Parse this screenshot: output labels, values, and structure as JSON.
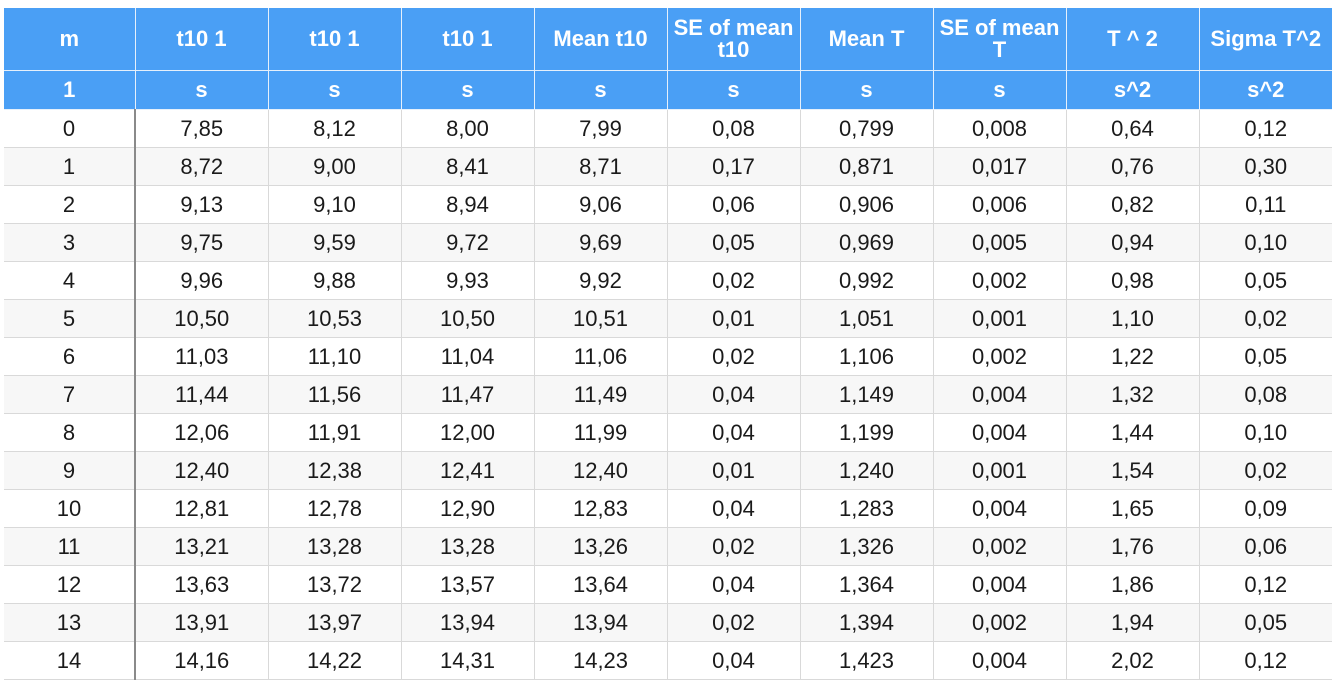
{
  "table": {
    "headers": [
      "m",
      "t10 1",
      "t10 1",
      "t10 1",
      "Mean t10",
      "SE of mean t10",
      "Mean T",
      "SE of mean T",
      "T ^ 2",
      "Sigma T^2"
    ],
    "units": [
      "1",
      "s",
      "s",
      "s",
      "s",
      "s",
      "s",
      "s",
      "s^2",
      "s^2"
    ],
    "rows": [
      [
        "0",
        "7,85",
        "8,12",
        "8,00",
        "7,99",
        "0,08",
        "0,799",
        "0,008",
        "0,64",
        "0,12"
      ],
      [
        "1",
        "8,72",
        "9,00",
        "8,41",
        "8,71",
        "0,17",
        "0,871",
        "0,017",
        "0,76",
        "0,30"
      ],
      [
        "2",
        "9,13",
        "9,10",
        "8,94",
        "9,06",
        "0,06",
        "0,906",
        "0,006",
        "0,82",
        "0,11"
      ],
      [
        "3",
        "9,75",
        "9,59",
        "9,72",
        "9,69",
        "0,05",
        "0,969",
        "0,005",
        "0,94",
        "0,10"
      ],
      [
        "4",
        "9,96",
        "9,88",
        "9,93",
        "9,92",
        "0,02",
        "0,992",
        "0,002",
        "0,98",
        "0,05"
      ],
      [
        "5",
        "10,50",
        "10,53",
        "10,50",
        "10,51",
        "0,01",
        "1,051",
        "0,001",
        "1,10",
        "0,02"
      ],
      [
        "6",
        "11,03",
        "11,10",
        "11,04",
        "11,06",
        "0,02",
        "1,106",
        "0,002",
        "1,22",
        "0,05"
      ],
      [
        "7",
        "11,44",
        "11,56",
        "11,47",
        "11,49",
        "0,04",
        "1,149",
        "0,004",
        "1,32",
        "0,08"
      ],
      [
        "8",
        "12,06",
        "11,91",
        "12,00",
        "11,99",
        "0,04",
        "1,199",
        "0,004",
        "1,44",
        "0,10"
      ],
      [
        "9",
        "12,40",
        "12,38",
        "12,41",
        "12,40",
        "0,01",
        "1,240",
        "0,001",
        "1,54",
        "0,02"
      ],
      [
        "10",
        "12,81",
        "12,78",
        "12,90",
        "12,83",
        "0,04",
        "1,283",
        "0,004",
        "1,65",
        "0,09"
      ],
      [
        "11",
        "13,21",
        "13,28",
        "13,28",
        "13,26",
        "0,02",
        "1,326",
        "0,002",
        "1,76",
        "0,06"
      ],
      [
        "12",
        "13,63",
        "13,72",
        "13,57",
        "13,64",
        "0,04",
        "1,364",
        "0,004",
        "1,86",
        "0,12"
      ],
      [
        "13",
        "13,91",
        "13,97",
        "13,94",
        "13,94",
        "0,02",
        "1,394",
        "0,002",
        "1,94",
        "0,05"
      ],
      [
        "14",
        "14,16",
        "14,22",
        "14,31",
        "14,23",
        "0,04",
        "1,423",
        "0,004",
        "2,02",
        "0,12"
      ]
    ]
  },
  "colors": {
    "header_bg": "#4a9ff5",
    "header_text": "#ffffff",
    "stripe_bg": "#f7f7f7"
  }
}
